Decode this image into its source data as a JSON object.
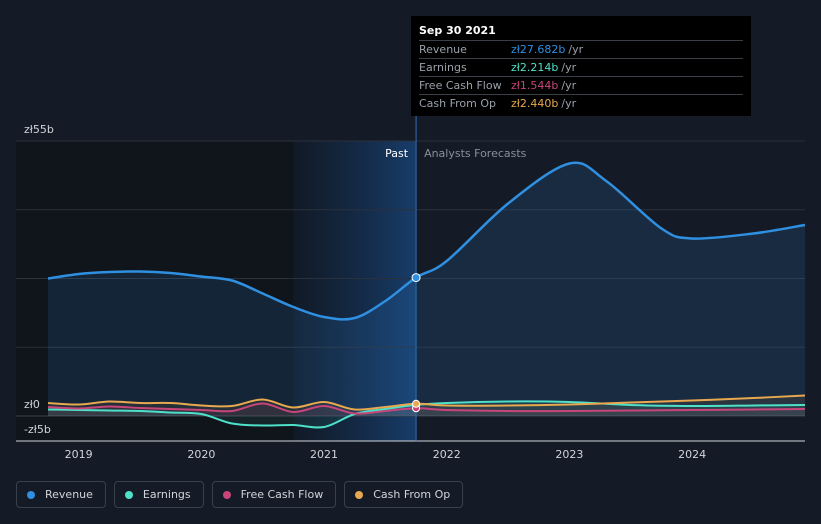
{
  "chart_data": {
    "type": "line",
    "y_ticks": [
      {
        "label": "zł55b",
        "value": 55
      },
      {
        "label": "zł0",
        "value": 0
      },
      {
        "label": "-zł5b",
        "value": -5
      }
    ],
    "ylim": [
      -5,
      55
    ],
    "x_ticks": [
      "2019",
      "2020",
      "2021",
      "2022",
      "2023",
      "2024"
    ],
    "xlim": [
      2018.75,
      2024.92
    ],
    "region_labels": {
      "past": "Past",
      "forecast": "Analysts Forecasts"
    },
    "divider_x": 2021.75,
    "highlight_start_x": 2020.75,
    "grid": true,
    "series": [
      {
        "name": "Revenue",
        "color": "#2f8fe0",
        "points": [
          [
            2018.75,
            27.5
          ],
          [
            2019.0,
            28.4
          ],
          [
            2019.25,
            28.8
          ],
          [
            2019.5,
            28.9
          ],
          [
            2019.75,
            28.6
          ],
          [
            2020.0,
            27.9
          ],
          [
            2020.25,
            27.1
          ],
          [
            2020.5,
            24.5
          ],
          [
            2020.75,
            21.8
          ],
          [
            2021.0,
            19.8
          ],
          [
            2021.25,
            19.6
          ],
          [
            2021.5,
            23.0
          ],
          [
            2021.75,
            27.68
          ],
          [
            2022.0,
            31.0
          ],
          [
            2022.5,
            42.5
          ],
          [
            2023.0,
            50.5
          ],
          [
            2023.3,
            47.0
          ],
          [
            2023.75,
            37.5
          ],
          [
            2024.0,
            35.5
          ],
          [
            2024.5,
            36.5
          ],
          [
            2024.92,
            38.2
          ]
        ]
      },
      {
        "name": "Earnings",
        "color": "#4ee0c8",
        "points": [
          [
            2018.75,
            1.3
          ],
          [
            2019.0,
            1.2
          ],
          [
            2019.25,
            1.1
          ],
          [
            2019.5,
            1.0
          ],
          [
            2019.75,
            0.7
          ],
          [
            2020.0,
            0.4
          ],
          [
            2020.25,
            -1.5
          ],
          [
            2020.5,
            -1.9
          ],
          [
            2020.75,
            -1.8
          ],
          [
            2021.0,
            -2.2
          ],
          [
            2021.25,
            0.4
          ],
          [
            2021.5,
            1.4
          ],
          [
            2021.75,
            2.214
          ],
          [
            2022.0,
            2.6
          ],
          [
            2022.5,
            2.9
          ],
          [
            2023.0,
            2.8
          ],
          [
            2023.5,
            2.2
          ],
          [
            2024.0,
            2.0
          ],
          [
            2024.5,
            2.1
          ],
          [
            2024.92,
            2.2
          ]
        ]
      },
      {
        "name": "Free Cash Flow",
        "color": "#c8457a",
        "points": [
          [
            2018.75,
            1.8
          ],
          [
            2019.0,
            1.5
          ],
          [
            2019.25,
            1.9
          ],
          [
            2019.5,
            1.6
          ],
          [
            2019.75,
            1.4
          ],
          [
            2020.0,
            1.2
          ],
          [
            2020.25,
            1.0
          ],
          [
            2020.5,
            2.5
          ],
          [
            2020.75,
            0.8
          ],
          [
            2021.0,
            2.0
          ],
          [
            2021.25,
            0.5
          ],
          [
            2021.5,
            1.0
          ],
          [
            2021.75,
            1.544
          ],
          [
            2022.0,
            1.2
          ],
          [
            2022.5,
            1.0
          ],
          [
            2023.0,
            1.0
          ],
          [
            2023.5,
            1.1
          ],
          [
            2024.0,
            1.2
          ],
          [
            2024.5,
            1.3
          ],
          [
            2024.92,
            1.4
          ]
        ]
      },
      {
        "name": "Cash From Op",
        "color": "#e8a84f",
        "points": [
          [
            2018.75,
            2.6
          ],
          [
            2019.0,
            2.3
          ],
          [
            2019.25,
            2.9
          ],
          [
            2019.5,
            2.6
          ],
          [
            2019.75,
            2.6
          ],
          [
            2020.0,
            2.1
          ],
          [
            2020.25,
            2.0
          ],
          [
            2020.5,
            3.3
          ],
          [
            2020.75,
            1.7
          ],
          [
            2021.0,
            2.8
          ],
          [
            2021.25,
            1.3
          ],
          [
            2021.5,
            1.8
          ],
          [
            2021.75,
            2.44
          ],
          [
            2022.0,
            2.1
          ],
          [
            2022.5,
            2.1
          ],
          [
            2023.0,
            2.3
          ],
          [
            2023.5,
            2.7
          ],
          [
            2024.0,
            3.1
          ],
          [
            2024.5,
            3.6
          ],
          [
            2024.92,
            4.1
          ]
        ]
      }
    ]
  },
  "tooltip": {
    "date": "Sep 30 2021",
    "rows": [
      {
        "name": "Revenue",
        "value": "zł27.682b",
        "unit": "/yr",
        "color": "#2f8fe0"
      },
      {
        "name": "Earnings",
        "value": "zł2.214b",
        "unit": "/yr",
        "color": "#4ee0c8"
      },
      {
        "name": "Free Cash Flow",
        "value": "zł1.544b",
        "unit": "/yr",
        "color": "#c8457a"
      },
      {
        "name": "Cash From Op",
        "value": "zł2.440b",
        "unit": "/yr",
        "color": "#e8a84f"
      }
    ]
  },
  "legend": [
    {
      "label": "Revenue",
      "color": "#2f8fe0"
    },
    {
      "label": "Earnings",
      "color": "#4ee0c8"
    },
    {
      "label": "Free Cash Flow",
      "color": "#c8457a"
    },
    {
      "label": "Cash From Op",
      "color": "#e8a84f"
    }
  ]
}
